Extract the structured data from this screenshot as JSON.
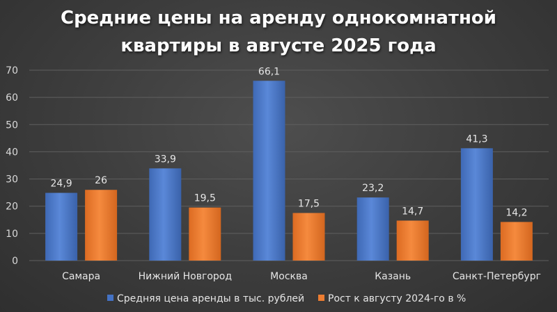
{
  "title": {
    "line1": "Средние цены на аренду однокомнатной",
    "line2": "квартиры в августе 2025 года"
  },
  "colors": {
    "series1": "#4472c4",
    "series2": "#ed7d31",
    "grid": "#5f5f5f",
    "text": "#e6e6e6"
  },
  "chart_data": {
    "type": "bar",
    "title": "Средние цены на аренду однокомнатной квартиры в августе 2025 года",
    "categories": [
      "Самара",
      "Нижний Новгород",
      "Москва",
      "Казань",
      "Санкт-Петербург"
    ],
    "series": [
      {
        "name": "Средняя цена аренды в тыс. рублей",
        "values": [
          24.9,
          33.9,
          66.1,
          23.2,
          41.3
        ],
        "labels": [
          "24,9",
          "33,9",
          "66,1",
          "23,2",
          "41,3"
        ]
      },
      {
        "name": "Рост к августу 2024-го в %",
        "values": [
          26,
          19.5,
          17.5,
          14.7,
          14.2
        ],
        "labels": [
          "26",
          "19,5",
          "17,5",
          "14,7",
          "14,2"
        ]
      }
    ],
    "ylim": [
      0,
      70
    ],
    "yticks": [
      0,
      10,
      20,
      30,
      40,
      50,
      60,
      70
    ],
    "grid": true,
    "legend_position": "bottom",
    "xlabel": "",
    "ylabel": ""
  }
}
